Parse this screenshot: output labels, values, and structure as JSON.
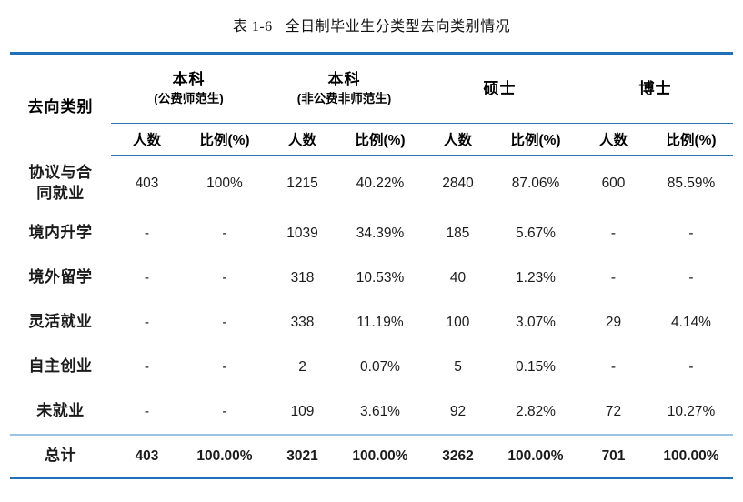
{
  "title": {
    "prefix": "表 1-6",
    "text": "全日制毕业生分类型去向类别情况"
  },
  "table": {
    "row_header": "去向类别",
    "groups": [
      {
        "title": "本科",
        "subtitle": "(公费师范生)"
      },
      {
        "title": "本科",
        "subtitle": "(非公费非师范生)"
      },
      {
        "title": "硕士",
        "subtitle": ""
      },
      {
        "title": "博士",
        "subtitle": ""
      }
    ],
    "sub_headers": {
      "count": "人数",
      "ratio": "比例(%)"
    },
    "rows": [
      {
        "label": "协议与合同就业",
        "values": [
          "403",
          "100%",
          "1215",
          "40.22%",
          "2840",
          "87.06%",
          "600",
          "85.59%"
        ]
      },
      {
        "label": "境内升学",
        "values": [
          "-",
          "-",
          "1039",
          "34.39%",
          "185",
          "5.67%",
          "-",
          "-"
        ]
      },
      {
        "label": "境外留学",
        "values": [
          "-",
          "-",
          "318",
          "10.53%",
          "40",
          "1.23%",
          "-",
          "-"
        ]
      },
      {
        "label": "灵活就业",
        "values": [
          "-",
          "-",
          "338",
          "11.19%",
          "100",
          "3.07%",
          "29",
          "4.14%"
        ]
      },
      {
        "label": "自主创业",
        "values": [
          "-",
          "-",
          "2",
          "0.07%",
          "5",
          "0.15%",
          "-",
          "-"
        ]
      },
      {
        "label": "未就业",
        "values": [
          "-",
          "-",
          "109",
          "3.61%",
          "92",
          "2.82%",
          "72",
          "10.27%"
        ]
      }
    ],
    "total": {
      "label": "总计",
      "values": [
        "403",
        "100.00%",
        "3021",
        "100.00%",
        "3262",
        "100.00%",
        "701",
        "100.00%"
      ]
    }
  },
  "colors": {
    "rule_thick": "#2271B8",
    "rule_thin": "#2E74B5",
    "rule_light": "#9CC2E5",
    "text": "#1b1b1b"
  }
}
